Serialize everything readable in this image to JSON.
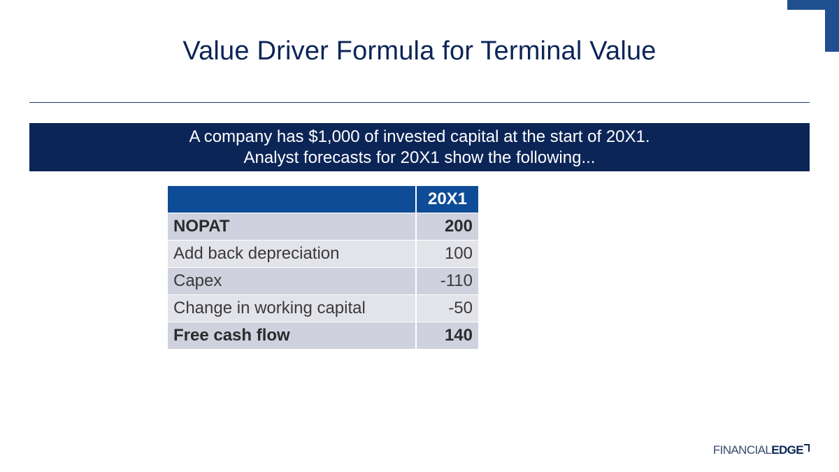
{
  "slide": {
    "title": "Value Driver Formula for Terminal Value",
    "banner_line1": "A company has $1,000 of invested capital at the start of 20X1.",
    "banner_line2": "Analyst forecasts for 20X1 show the following..."
  },
  "table": {
    "header": "20X1",
    "rows": [
      {
        "label": "NOPAT",
        "value": "200"
      },
      {
        "label": "Add back depreciation",
        "value": "100"
      },
      {
        "label": "Capex",
        "value": "-110"
      },
      {
        "label": "Change in working capital",
        "value": "-50"
      },
      {
        "label": "Free cash flow",
        "value": "140"
      }
    ]
  },
  "logo": {
    "part1": "FINANCIAL",
    "part2": "EDGE"
  },
  "colors": {
    "navy": "#0c2557",
    "table_header_blue": "#0f4c97",
    "row_dark": "#cfd2de",
    "row_light": "#e3e4ea"
  }
}
